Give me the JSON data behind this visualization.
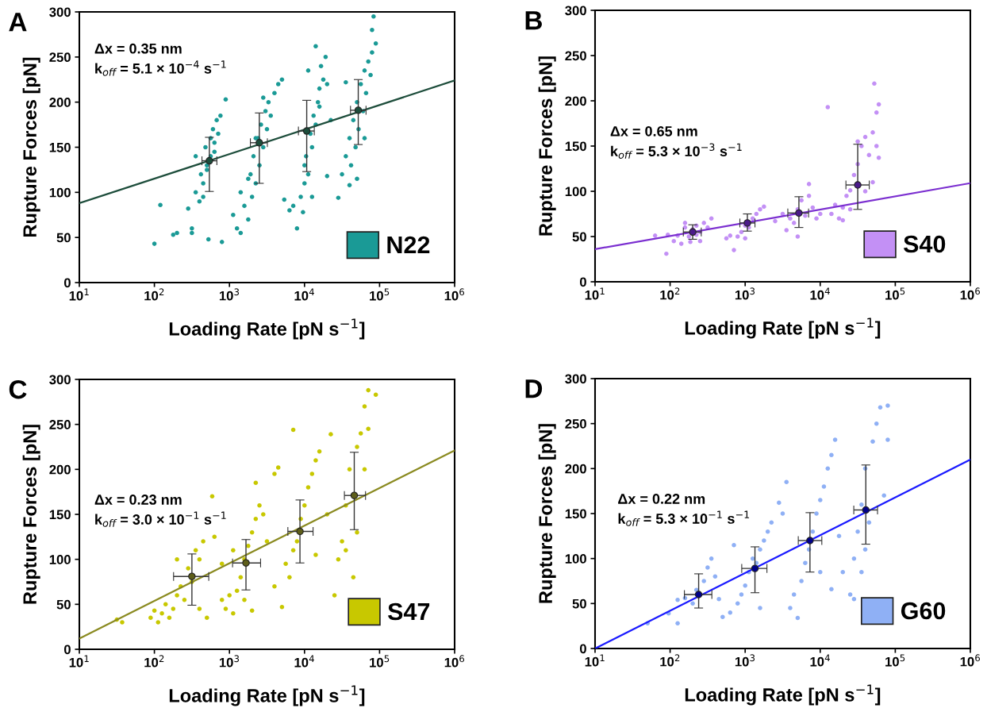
{
  "chart_data": [
    {
      "type": "scatter",
      "title": "A",
      "xlabel": "Loading Rate [pN s$^{−1}$]",
      "ylabel": "Rupture Forces [pN]",
      "log": "x",
      "xlim": [
        10,
        1000000
      ],
      "ylim": [
        0,
        300
      ],
      "xticks": [
        {
          "value": 10,
          "label": "10$^{1}$"
        },
        {
          "value": 100,
          "label": "10$^{2}$"
        },
        {
          "value": 1000,
          "label": "10$^{3}$"
        },
        {
          "value": 10000,
          "label": "10$^{4}$"
        },
        {
          "value": 100000,
          "label": "10$^{5}$"
        },
        {
          "value": 1000000,
          "label": "10$^{6}$"
        }
      ],
      "yticks": [
        0,
        50,
        100,
        150,
        200,
        250,
        300
      ],
      "grid": false,
      "legend": "bottom right",
      "marker": "circle",
      "annotations": [
        "Δx = 0.35 nm",
        "k$_{off}$ = 5.1 × 10$^{−4}$ s$^{−1}$"
      ],
      "series": [
        {
          "name": "N22",
          "color": "#1a9a96",
          "x": [
            100,
            120,
            178,
            200,
            282,
            316,
            316,
            355,
            355,
            398,
            417,
            447,
            479,
            501,
            525,
            562,
            562,
            603,
            631,
            676,
            708,
            759,
            794,
            891,
            447,
            501,
            631,
            1120,
            1260,
            1410,
            1410,
            1580,
            1780,
            1910,
            2000,
            2090,
            2240,
            2400,
            2510,
            2630,
            2820,
            3020,
            3160,
            3310,
            3550,
            3980,
            4470,
            5010,
            5370,
            2240,
            1780,
            2820,
            6310,
            7080,
            7940,
            8910,
            9550,
            10000,
            10500,
            11200,
            12000,
            12600,
            13200,
            14100,
            15100,
            15800,
            16600,
            17800,
            19100,
            20000,
            22400,
            11200,
            14100,
            12600,
            20000,
            10000,
            15800,
            28200,
            31600,
            35500,
            39800,
            39800,
            41700,
            44700,
            47900,
            50100,
            52500,
            56200,
            60300,
            63100,
            66100,
            70800,
            75900,
            79400,
            79400,
            83200,
            89100,
            50100,
            35500,
            63100
          ],
          "values": [
            43,
            86,
            53,
            55,
            82,
            60,
            55,
            100,
            140,
            90,
            120,
            110,
            150,
            130,
            48,
            160,
            140,
            170,
            155,
            180,
            165,
            185,
            45,
            203,
            95,
            125,
            145,
            75,
            60,
            55,
            100,
            85,
            70,
            120,
            95,
            140,
            110,
            160,
            130,
            175,
            150,
            190,
            170,
            200,
            185,
            210,
            220,
            225,
            92,
            160,
            115,
            205,
            80,
            85,
            60,
            95,
            78,
            110,
            140,
            120,
            165,
            150,
            185,
            175,
            200,
            215,
            240,
            225,
            250,
            220,
            180,
            235,
            262,
            95,
            118,
            130,
            195,
            94,
            120,
            140,
            108,
            160,
            130,
            180,
            150,
            200,
            170,
            220,
            190,
            235,
            210,
            245,
            230,
            280,
            255,
            295,
            265,
            115,
            222,
            160
          ]
        },
        {
          "color": "#1d4d3b",
          "x": [
            540,
            2500,
            10700,
            52000
          ],
          "values": [
            135,
            155,
            168,
            191
          ],
          "errors": [
            [
              101,
              161
            ],
            [
              110,
              188
            ],
            [
              123,
              202
            ],
            [
              153,
              225
            ]
          ],
          "xerrors": [
            [
              430,
              680
            ],
            [
              1900,
              3200
            ],
            [
              8300,
              13500
            ],
            [
              41000,
              66000
            ]
          ]
        },
        {
          "type": "line",
          "color": "#1d4d3b",
          "x": [
            10,
            1000000
          ],
          "values": [
            88,
            224
          ],
          "marker": "none"
        }
      ]
    },
    {
      "type": "scatter",
      "title": "B",
      "xlabel": "Loading Rate [pN s$^{−1}$]",
      "ylabel": "Rupture Forces [pN]",
      "log": "x",
      "xlim": [
        10,
        1000000
      ],
      "ylim": [
        0,
        300
      ],
      "xticks": [
        {
          "value": 10,
          "label": "10$^{1}$"
        },
        {
          "value": 100,
          "label": "10$^{2}$"
        },
        {
          "value": 1000,
          "label": "10$^{3}$"
        },
        {
          "value": 10000,
          "label": "10$^{4}$"
        },
        {
          "value": 100000,
          "label": "10$^{5}$"
        },
        {
          "value": 1000000,
          "label": "10$^{6}$"
        }
      ],
      "yticks": [
        0,
        50,
        100,
        150,
        200,
        250,
        300
      ],
      "grid": false,
      "legend": "bottom right",
      "marker": "circle",
      "annotations": [
        "Δx = 0.65 nm",
        "k$_{off}$ = 5.3 × 10$^{−3}$ s$^{−1}$"
      ],
      "series": [
        {
          "name": "S40",
          "color": "#c390f5",
          "x": [
            63.1,
            89.1,
            93.3,
            112,
            126,
            141,
            158,
            158,
            178,
            200,
            224,
            251,
            251,
            282,
            316,
            355,
            186,
            224,
            562,
            631,
            708,
            794,
            891,
            1000,
            1120,
            1260,
            1410,
            1580,
            1780,
            1000,
            2510,
            3160,
            3550,
            3980,
            4470,
            5010,
            5620,
            6310,
            7080,
            5010,
            7080,
            7940,
            8910,
            10000,
            12600,
            14100,
            15800,
            17800,
            20000,
            22400,
            25100,
            28200,
            31600,
            31600,
            35500,
            39800,
            39800,
            44700,
            50100,
            50100,
            52500,
            56200,
            56200,
            60300,
            60300,
            25100,
            20000
          ],
          "values": [
            51,
            31,
            52,
            45,
            51,
            42,
            60,
            65,
            50,
            58,
            62,
            45,
            55,
            65,
            60,
            70,
            44,
            52,
            48,
            51,
            35,
            50,
            55,
            62,
            60,
            70,
            75,
            80,
            83,
            48,
            67,
            75,
            57,
            70,
            65,
            80,
            90,
            73,
            95,
            50,
            108,
            82,
            70,
            75,
            193,
            75,
            85,
            70,
            82,
            95,
            80,
            118,
            130,
            155,
            150,
            160,
            100,
            140,
            110,
            165,
            219,
            187,
            150,
            196,
            137,
            101,
            68
          ]
        },
        {
          "color": "#4b1a8a",
          "x": [
            200,
            1070,
            5200,
            31600
          ],
          "values": [
            55,
            65,
            76,
            107
          ],
          "errors": [
            [
              47,
              63
            ],
            [
              56,
              75
            ],
            [
              60,
              94
            ],
            [
              80,
              152
            ]
          ],
          "xerrors": [
            [
              150,
              260
            ],
            [
              850,
              1350
            ],
            [
              3700,
              7000
            ],
            [
              22000,
              45000
            ]
          ]
        },
        {
          "type": "line",
          "color": "#7b2fd0",
          "x": [
            10,
            1000000
          ],
          "values": [
            36,
            109
          ],
          "marker": "none"
        }
      ]
    },
    {
      "type": "scatter",
      "title": "C",
      "xlabel": "Loading Rate [pN s$^{−1}$]",
      "ylabel": "Rupture Forces [pN]",
      "log": "x",
      "xlim": [
        10,
        1000000
      ],
      "ylim": [
        0,
        300
      ],
      "xticks": [
        {
          "value": 10,
          "label": "10$^{1}$"
        },
        {
          "value": 100,
          "label": "10$^{2}$"
        },
        {
          "value": 1000,
          "label": "10$^{3}$"
        },
        {
          "value": 10000,
          "label": "10$^{4}$"
        },
        {
          "value": 100000,
          "label": "10$^{5}$"
        },
        {
          "value": 1000000,
          "label": "10$^{6}$"
        }
      ],
      "yticks": [
        0,
        50,
        100,
        150,
        200,
        250,
        300
      ],
      "grid": false,
      "legend": "bottom right",
      "marker": "circle",
      "annotations": [
        "Δx = 0.23 nm",
        "k$_{off}$ = 3.0 × 10$^{−1}$ s$^{−1}$"
      ],
      "series": [
        {
          "name": "S47",
          "color": "#c8c800",
          "x": [
            31.6,
            37.2,
            89.1,
            100,
            112,
            126,
            141,
            158,
            178,
            200,
            200,
            224,
            251,
            282,
            316,
            355,
            398,
            447,
            398,
            501,
            589,
            631,
            794,
            891,
            1000,
            1120,
            1260,
            1410,
            1580,
            1580,
            1780,
            2000,
            2240,
            2510,
            2820,
            2000,
            2240,
            3160,
            3980,
            4470,
            3980,
            5010,
            5620,
            6310,
            7080,
            7940,
            8910,
            10000,
            11200,
            12600,
            14100,
            15800,
            7080,
            14100,
            20000,
            22400,
            25100,
            28200,
            31600,
            35500,
            39800,
            44700,
            50100,
            56200,
            63100,
            63100,
            70800,
            70800,
            89100,
            50100,
            35500,
            1120,
            794
          ],
          "values": [
            33,
            30,
            35,
            43,
            30,
            40,
            50,
            35,
            45,
            60,
            100,
            70,
            55,
            90,
            75,
            110,
            100,
            120,
            45,
            35,
            170,
            125,
            55,
            45,
            60,
            40,
            65,
            80,
            100,
            55,
            115,
            130,
            145,
            160,
            150,
            43,
            185,
            120,
            195,
            202,
            70,
            47,
            95,
            80,
            110,
            120,
            145,
            160,
            180,
            195,
            210,
            220,
            244,
            105,
            150,
            239,
            60,
            100,
            120,
            160,
            200,
            80,
            225,
            240,
            200,
            270,
            288,
            245,
            283,
            130,
            110,
            110,
            95
          ]
        },
        {
          "color": "#5e5e1a",
          "x": [
            316,
            1660,
            8700,
            46000
          ],
          "values": [
            81,
            96,
            131,
            171
          ],
          "errors": [
            [
              49,
              106
            ],
            [
              66,
              122
            ],
            [
              96,
              166
            ],
            [
              133,
              219
            ]
          ],
          "xerrors": [
            [
              180,
              530
            ],
            [
              1100,
              2600
            ],
            [
              6000,
              13000
            ],
            [
              34000,
              65000
            ]
          ]
        },
        {
          "type": "line",
          "color": "#8a8a20",
          "x": [
            10,
            1000000
          ],
          "values": [
            12,
            221
          ],
          "marker": "none"
        }
      ]
    },
    {
      "type": "scatter",
      "title": "D",
      "xlabel": "Loading Rate [pN s$^{−1}$]",
      "ylabel": "Rupture Forces [pN]",
      "log": "x",
      "xlim": [
        10,
        1000000
      ],
      "ylim": [
        0,
        300
      ],
      "xticks": [
        {
          "value": 10,
          "label": "10$^{1}$"
        },
        {
          "value": 100,
          "label": "10$^{2}$"
        },
        {
          "value": 1000,
          "label": "10$^{3}$"
        },
        {
          "value": 10000,
          "label": "10$^{4}$"
        },
        {
          "value": 100000,
          "label": "10$^{5}$"
        },
        {
          "value": 1000000,
          "label": "10$^{6}$"
        }
      ],
      "yticks": [
        0,
        50,
        100,
        150,
        200,
        250,
        300
      ],
      "grid": false,
      "legend": "bottom right",
      "marker": "circle",
      "annotations": [
        "Δx = 0.22 nm",
        "k$_{off}$ = 5.3 × 10$^{−1}$ s$^{−1}$"
      ],
      "series": [
        {
          "name": "G60",
          "color": "#8fb0f5",
          "x": [
            50.1,
            95.5,
            126,
            126,
            158,
            200,
            224,
            282,
            316,
            355,
            398,
            447,
            501,
            631,
            708,
            794,
            891,
            1000,
            1120,
            1260,
            1410,
            1580,
            1780,
            2000,
            2240,
            1580,
            2820,
            3550,
            3980,
            4470,
            5010,
            5620,
            6310,
            7080,
            7940,
            8910,
            10000,
            11200,
            12600,
            14100,
            15800,
            14100,
            10000,
            20000,
            25100,
            28200,
            31600,
            35500,
            39800,
            39800,
            44700,
            50100,
            56200,
            63100,
            70800,
            79400,
            79400,
            35500,
            28200,
            3160,
            17800
          ],
          "values": [
            28,
            39,
            28,
            54,
            56,
            50,
            65,
            75,
            90,
            100,
            80,
            55,
            35,
            40,
            115,
            50,
            60,
            70,
            85,
            100,
            95,
            110,
            120,
            130,
            140,
            45,
            162,
            185,
            45,
            60,
            34,
            75,
            95,
            110,
            130,
            150,
            165,
            180,
            200,
            215,
            232,
            66,
            85,
            85,
            60,
            100,
            130,
            160,
            200,
            110,
            140,
            230,
            250,
            268,
            170,
            270,
            232,
            85,
            55,
            150,
            125
          ]
        },
        {
          "color": "#00008b",
          "x": [
            240,
            1350,
            7300,
            40500
          ],
          "values": [
            60,
            89,
            120,
            154
          ],
          "errors": [
            [
              45,
              83
            ],
            [
              62,
              113
            ],
            [
              85,
              151
            ],
            [
              116,
              204
            ]
          ],
          "xerrors": [
            [
              155,
              360
            ],
            [
              900,
              1950
            ],
            [
              5100,
              10500
            ],
            [
              28000,
              58000
            ]
          ]
        },
        {
          "type": "line",
          "color": "#1a1aff",
          "x": [
            10,
            1000000
          ],
          "values": [
            0,
            210
          ],
          "marker": "none"
        }
      ]
    }
  ]
}
